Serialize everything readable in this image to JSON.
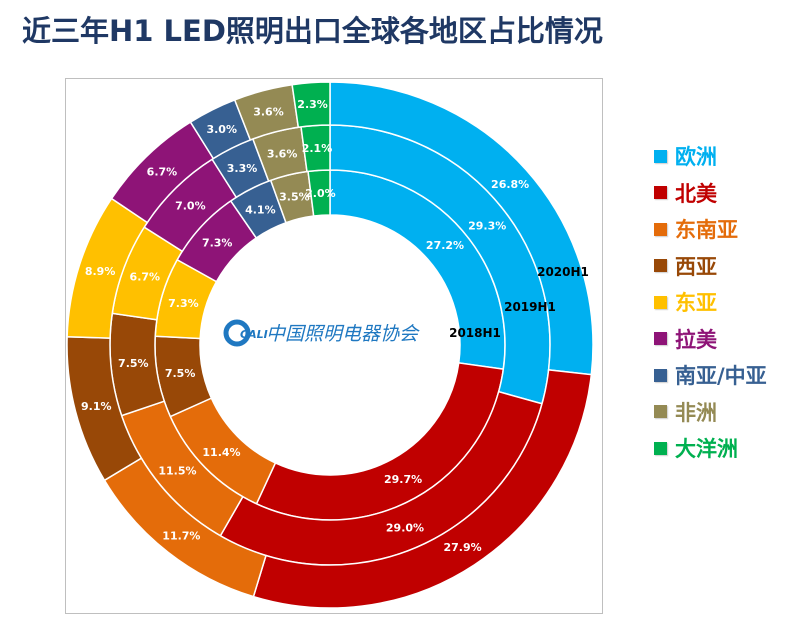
{
  "chart_data": {
    "type": "pie",
    "subtype": "multi-ring donut",
    "title": "近三年H1 LED照明出口全球各地区占比情况",
    "categories": [
      "欧洲",
      "北美",
      "东南亚",
      "西亚",
      "东亚",
      "拉美",
      "南亚/中亚",
      "非洲",
      "大洋洲"
    ],
    "colors": [
      "#00b0f0",
      "#c00000",
      "#e46c0a",
      "#984807",
      "#ffc000",
      "#8e1477",
      "#376092",
      "#948a54",
      "#00b050"
    ],
    "series": [
      {
        "name": "2018H1",
        "ring": "inner",
        "values": [
          27.2,
          29.7,
          11.4,
          7.5,
          7.3,
          7.3,
          4.1,
          3.5,
          2.0
        ]
      },
      {
        "name": "2019H1",
        "ring": "middle",
        "values": [
          29.3,
          29.0,
          11.5,
          7.5,
          6.7,
          7.0,
          3.3,
          3.6,
          2.1
        ]
      },
      {
        "name": "2020H1",
        "ring": "outer",
        "values": [
          26.8,
          27.9,
          11.7,
          9.1,
          8.9,
          6.7,
          3.0,
          3.6,
          2.3
        ]
      }
    ],
    "value_suffix": "%",
    "legend_position": "right"
  },
  "logo": {
    "mark": "CALI",
    "text": "中国照明电器协会"
  }
}
